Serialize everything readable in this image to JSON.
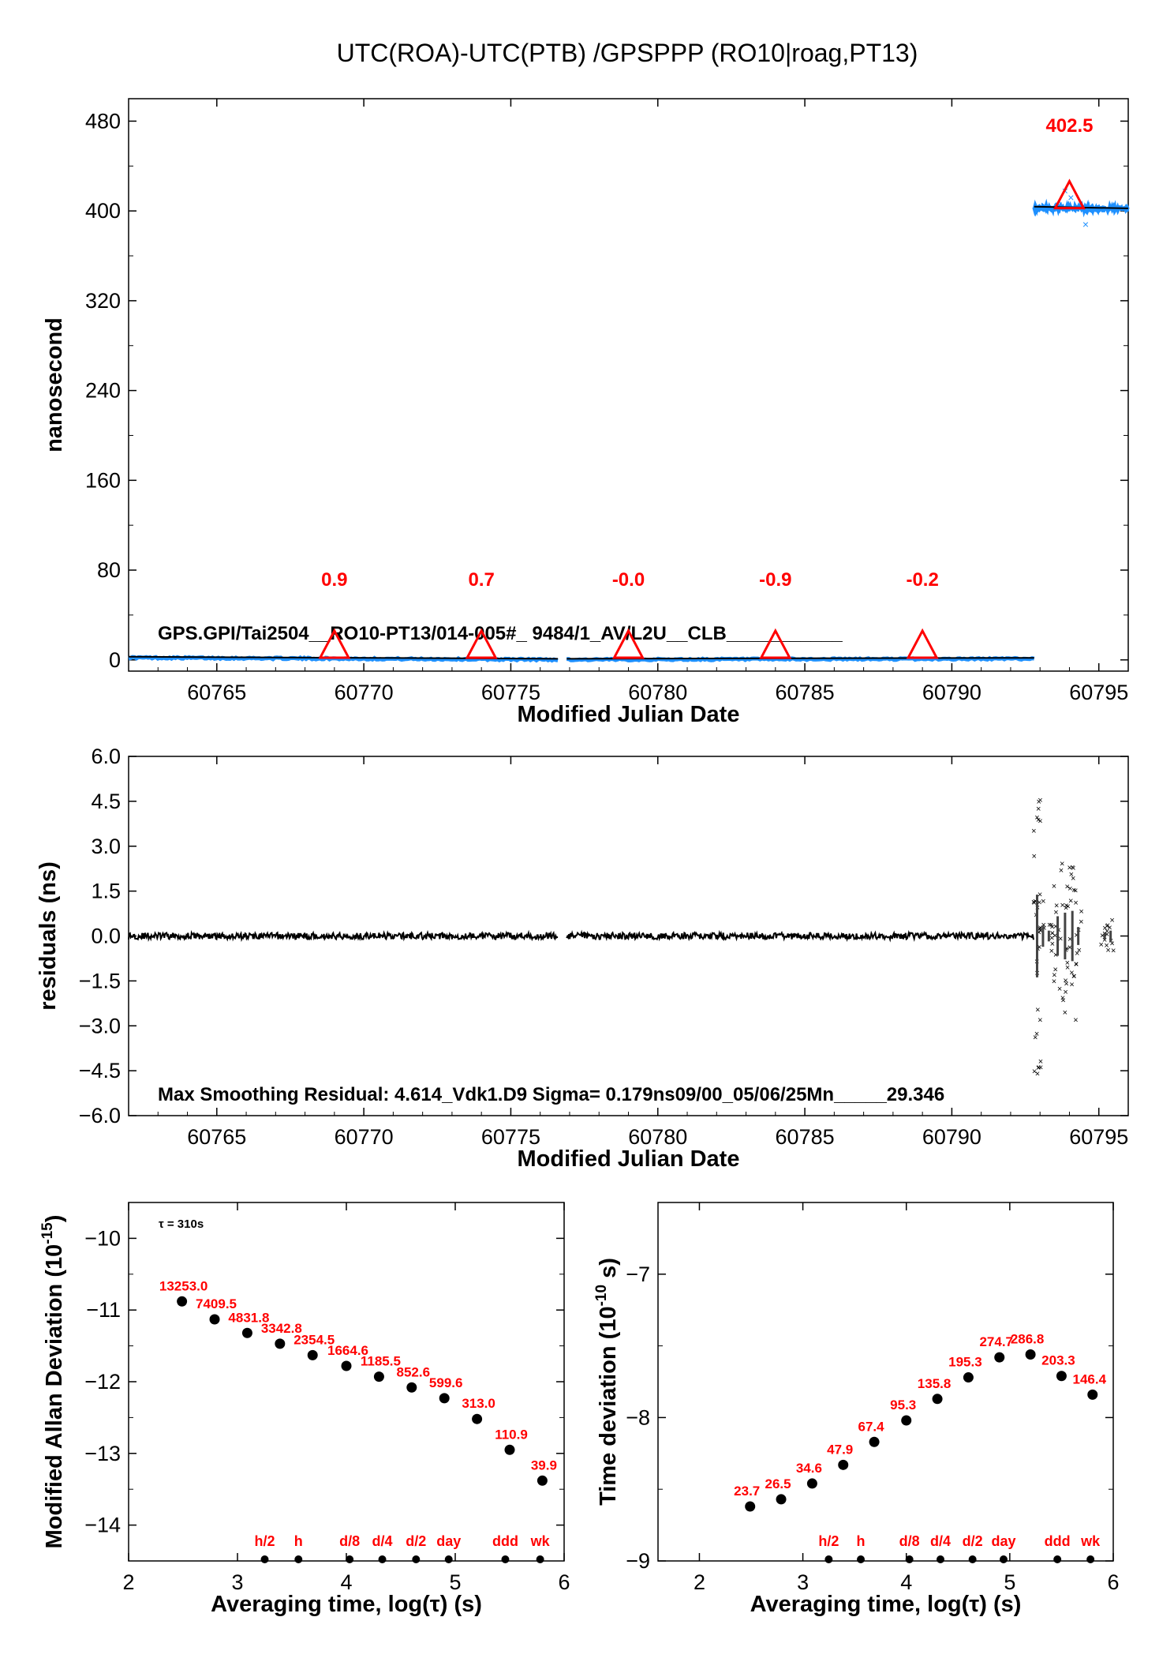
{
  "colors": {
    "red": "#ff0000",
    "blue": "#1e90ff",
    "black": "#000000"
  },
  "chart_data": [
    {
      "id": "offset",
      "type": "scatter",
      "title": "UTC(ROA)-UTC(PTB)  /GPSPPP  (RO10|roag,PT13)",
      "xlabel": "Modified Julian Date",
      "ylabel": "nanosecond",
      "xlim": [
        60762.0,
        60796.0
      ],
      "ylim": [
        -10,
        500
      ],
      "xticks": [
        60765,
        60770,
        60775,
        60780,
        60785,
        60790,
        60795
      ],
      "yticks": [
        0,
        80,
        160,
        240,
        320,
        400,
        480
      ],
      "ytick_labels": [
        "0",
        "80",
        "160",
        "240",
        "320",
        "400",
        "480"
      ],
      "segments": [
        {
          "x": [
            60762.0,
            60776.6
          ],
          "y": [
            2.0,
            0.2
          ]
        },
        {
          "x": [
            60776.9,
            60792.8
          ],
          "y": [
            0.2,
            1.0
          ]
        },
        {
          "x": [
            60792.8,
            60796.0
          ],
          "y": [
            403.0,
            401.5
          ]
        }
      ],
      "markers": [
        {
          "x": 60769.0,
          "y": 2,
          "label": "0.9"
        },
        {
          "x": 60774.0,
          "y": 2,
          "label": "0.7"
        },
        {
          "x": 60779.0,
          "y": 2,
          "label": "-0.0"
        },
        {
          "x": 60784.0,
          "y": 2,
          "label": "-0.9"
        },
        {
          "x": 60789.0,
          "y": 2,
          "label": "-0.2"
        },
        {
          "x": 60794.0,
          "y": 402.5,
          "label": "402.5"
        }
      ],
      "annotation": "GPS.GPI/Tai2504__RO10-PT13/014-005#_  9484/1_AV/L2U__CLB___________"
    },
    {
      "id": "residuals",
      "type": "scatter",
      "xlabel": "Modified Julian Date",
      "ylabel": "residuals (ns)",
      "xlim": [
        60762.0,
        60796.0
      ],
      "ylim": [
        -6.0,
        6.0
      ],
      "xticks": [
        60765,
        60770,
        60775,
        60780,
        60785,
        60790,
        60795
      ],
      "yticks": [
        6.0,
        4.5,
        3.0,
        1.5,
        0.0,
        -1.5,
        -3.0,
        -4.5,
        -6.0
      ],
      "ytick_labels": [
        "6.0",
        "4.5",
        "3.0",
        "1.5",
        "0.0",
        "−1.5",
        "−3.0",
        "−4.5",
        "−6.0"
      ],
      "noise_bursts": [
        {
          "x": 60792.9,
          "amp": 4.6
        },
        {
          "x": 60793.1,
          "amp": 1.2
        },
        {
          "x": 60793.3,
          "amp": 0.6
        },
        {
          "x": 60793.6,
          "amp": 2.2
        },
        {
          "x": 60793.85,
          "amp": 2.6
        },
        {
          "x": 60794.1,
          "amp": 2.8
        },
        {
          "x": 60794.3,
          "amp": 1.0
        },
        {
          "x": 60795.2,
          "amp": 0.4
        },
        {
          "x": 60795.4,
          "amp": 0.6
        }
      ],
      "annotation": "Max Smoothing Residual: 4.614_Vdk1.D9  Sigma= 0.179ns09/00_05/06/25Mn_____29.346"
    },
    {
      "id": "mdev",
      "type": "scatter",
      "xlabel": "Averaging time, log(τ) (s)",
      "ylabel_base": "Modified Allan Deviation (10",
      "ylabel_exp": "-15",
      "ylabel_tail": ")",
      "tau_note": "τ = 310s",
      "xlim": [
        2.0,
        6.0
      ],
      "ylim": [
        -14.5,
        -9.5
      ],
      "xticks": [
        2,
        3,
        4,
        5,
        6
      ],
      "yticks": [
        -10,
        -11,
        -12,
        -13,
        -14
      ],
      "ytick_labels": [
        "−10",
        "−11",
        "−12",
        "−13",
        "−14"
      ],
      "x": [
        2.49,
        2.79,
        3.09,
        3.39,
        3.69,
        4.0,
        4.3,
        4.6,
        4.9,
        5.2,
        5.5,
        5.8
      ],
      "y": [
        -10.88,
        -11.13,
        -11.32,
        -11.47,
        -11.63,
        -11.78,
        -11.93,
        -12.08,
        -12.23,
        -12.52,
        -12.95,
        -13.38
      ],
      "labels": [
        "13253.0",
        "7409.5",
        "4831.8",
        "3342.8",
        "2354.5",
        "1664.6",
        "1185.5",
        "852.6",
        "599.6",
        "313.0",
        "110.9",
        "39.9"
      ],
      "span_x": [
        3.25,
        3.56,
        4.03,
        4.33,
        4.64,
        4.94,
        5.46,
        5.78
      ],
      "span_labels": [
        "h/2",
        "h",
        "d/8",
        "d/4",
        "d/2",
        "day",
        "ddd",
        "wk"
      ]
    },
    {
      "id": "tdev",
      "type": "scatter",
      "xlabel": "Averaging time, log(τ) (s)",
      "ylabel_base": "Time deviation (10",
      "ylabel_exp": "-10",
      "ylabel_tail": " s)",
      "xlim": [
        1.6,
        6.0
      ],
      "ylim": [
        -9.0,
        -6.5
      ],
      "xticks": [
        2,
        3,
        4,
        5,
        6
      ],
      "yticks": [
        -7,
        -8,
        -9
      ],
      "ytick_labels": [
        "−7",
        "−8",
        "−9"
      ],
      "x": [
        2.49,
        2.79,
        3.09,
        3.39,
        3.69,
        4.0,
        4.3,
        4.6,
        4.9,
        5.2,
        5.5,
        5.8
      ],
      "y": [
        -8.62,
        -8.57,
        -8.46,
        -8.33,
        -8.17,
        -8.02,
        -7.87,
        -7.72,
        -7.58,
        -7.56,
        -7.71,
        -7.84
      ],
      "labels": [
        "23.7",
        "26.5",
        "34.6",
        "47.9",
        "67.4",
        "95.3",
        "135.8",
        "195.3",
        "274.7",
        "286.8",
        "203.3",
        "146.4"
      ],
      "span_x": [
        3.25,
        3.56,
        4.03,
        4.33,
        4.64,
        4.94,
        5.46,
        5.78
      ],
      "span_labels": [
        "h/2",
        "h",
        "d/8",
        "d/4",
        "d/2",
        "day",
        "ddd",
        "wk"
      ]
    }
  ]
}
